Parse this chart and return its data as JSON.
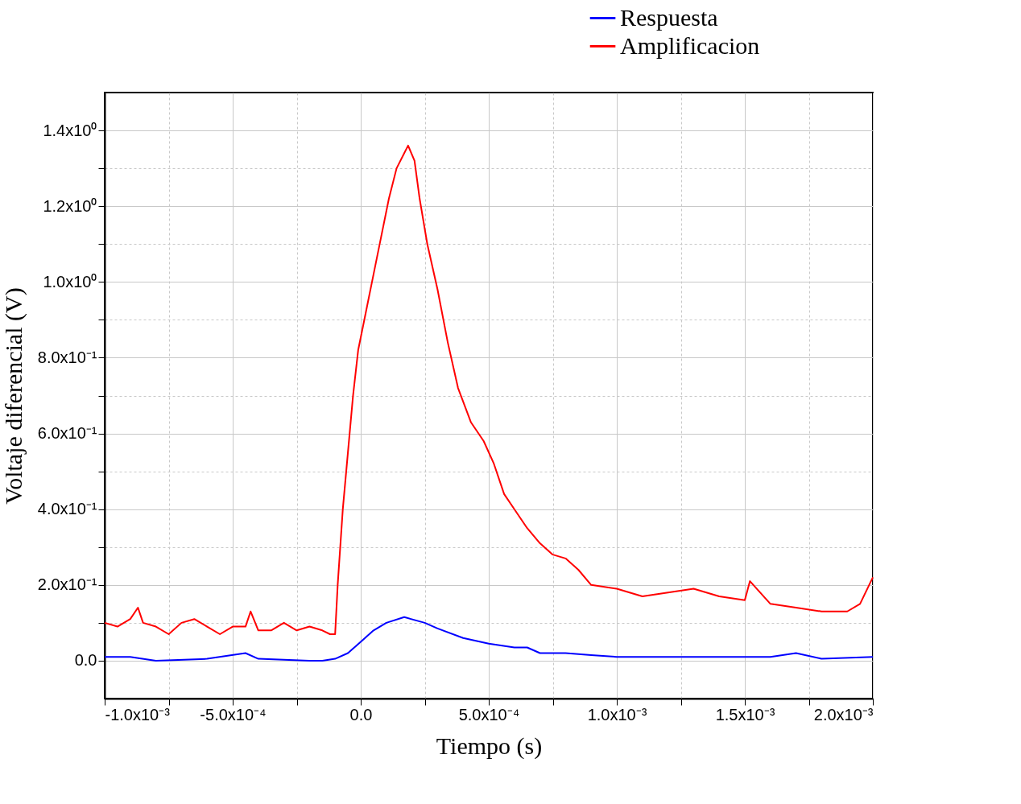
{
  "chart_data": {
    "type": "line",
    "xlabel": "Tiempo (s)",
    "ylabel": "Voltaje diferencial (V)",
    "xlim": [
      -0.001,
      0.002
    ],
    "ylim": [
      -0.1,
      1.5
    ],
    "xticks": [
      {
        "value": -0.001,
        "label": "-1.0x10⁻³"
      },
      {
        "value": -0.00075,
        "label": null
      },
      {
        "value": -0.0005,
        "label": "-5.0x10⁻⁴"
      },
      {
        "value": -0.00025,
        "label": null
      },
      {
        "value": 0,
        "label": "0.0"
      },
      {
        "value": 0.00025,
        "label": null
      },
      {
        "value": 0.0005,
        "label": "5.0x10⁻⁴"
      },
      {
        "value": 0.00075,
        "label": null
      },
      {
        "value": 0.001,
        "label": "1.0x10⁻³"
      },
      {
        "value": 0.00125,
        "label": null
      },
      {
        "value": 0.0015,
        "label": "1.5x10⁻³"
      },
      {
        "value": 0.00175,
        "label": null
      },
      {
        "value": 0.002,
        "label": "2.0x10⁻³"
      }
    ],
    "yticks": [
      {
        "value": 0,
        "label": "0.0"
      },
      {
        "value": 0.1,
        "label": null
      },
      {
        "value": 0.2,
        "label": "2.0x10⁻¹"
      },
      {
        "value": 0.3,
        "label": null
      },
      {
        "value": 0.4,
        "label": "4.0x10⁻¹"
      },
      {
        "value": 0.5,
        "label": null
      },
      {
        "value": 0.6,
        "label": "6.0x10⁻¹"
      },
      {
        "value": 0.7,
        "label": null
      },
      {
        "value": 0.8,
        "label": "8.0x10⁻¹"
      },
      {
        "value": 0.9,
        "label": null
      },
      {
        "value": 1.0,
        "label": "1.0x10⁰"
      },
      {
        "value": 1.1,
        "label": null
      },
      {
        "value": 1.2,
        "label": "1.2x10⁰"
      },
      {
        "value": 1.3,
        "label": null
      },
      {
        "value": 1.4,
        "label": "1.4x10⁰"
      }
    ],
    "grid": true,
    "legend": "top right",
    "series": [
      {
        "name": "Respuesta",
        "color": "#0000ff",
        "x": [
          -0.001,
          -0.0009,
          -0.0008,
          -0.0006,
          -0.00045,
          -0.0004,
          -0.0002,
          -0.00015,
          -0.0001,
          -5e-05,
          0,
          5e-05,
          0.0001,
          0.00017,
          0.00025,
          0.0003,
          0.0004,
          0.0005,
          0.0006,
          0.00065,
          0.0007,
          0.0008,
          0.0009,
          0.001,
          0.0012,
          0.0014,
          0.0016,
          0.0017,
          0.0018,
          0.002
        ],
        "values": [
          0.01,
          0.01,
          0.0,
          0.005,
          0.02,
          0.005,
          0.0,
          0.0,
          0.005,
          0.02,
          0.05,
          0.08,
          0.1,
          0.115,
          0.1,
          0.085,
          0.06,
          0.045,
          0.035,
          0.035,
          0.02,
          0.02,
          0.015,
          0.01,
          0.01,
          0.01,
          0.01,
          0.02,
          0.005,
          0.01
        ]
      },
      {
        "name": "Amplificacion",
        "color": "#ff0000",
        "x": [
          -0.001,
          -0.00095,
          -0.0009,
          -0.00087,
          -0.00085,
          -0.0008,
          -0.00075,
          -0.0007,
          -0.00065,
          -0.0006,
          -0.00055,
          -0.0005,
          -0.00045,
          -0.00043,
          -0.0004,
          -0.00035,
          -0.0003,
          -0.00025,
          -0.0002,
          -0.00015,
          -0.00012,
          -0.0001,
          -9e-05,
          -7e-05,
          -5e-05,
          -3e-05,
          -1e-05,
          2e-05,
          5e-05,
          8e-05,
          0.00011,
          0.00014,
          0.00017,
          0.000185,
          0.00021,
          0.00023,
          0.00026,
          0.0003,
          0.00034,
          0.00038,
          0.00043,
          0.00048,
          0.00052,
          0.00056,
          0.0006,
          0.00065,
          0.0007,
          0.00075,
          0.0008,
          0.00085,
          0.0009,
          0.001,
          0.0011,
          0.0012,
          0.0013,
          0.0014,
          0.0015,
          0.00152,
          0.0016,
          0.0017,
          0.0018,
          0.0019,
          0.00195,
          0.002
        ],
        "values": [
          0.1,
          0.09,
          0.11,
          0.14,
          0.1,
          0.09,
          0.07,
          0.1,
          0.11,
          0.09,
          0.07,
          0.09,
          0.09,
          0.13,
          0.08,
          0.08,
          0.1,
          0.08,
          0.09,
          0.08,
          0.07,
          0.07,
          0.2,
          0.4,
          0.55,
          0.7,
          0.82,
          0.92,
          1.02,
          1.12,
          1.22,
          1.3,
          1.34,
          1.36,
          1.32,
          1.22,
          1.1,
          0.98,
          0.84,
          0.72,
          0.63,
          0.58,
          0.52,
          0.44,
          0.4,
          0.35,
          0.31,
          0.28,
          0.27,
          0.24,
          0.2,
          0.19,
          0.17,
          0.18,
          0.19,
          0.17,
          0.16,
          0.21,
          0.15,
          0.14,
          0.13,
          0.13,
          0.15,
          0.22
        ]
      }
    ]
  }
}
